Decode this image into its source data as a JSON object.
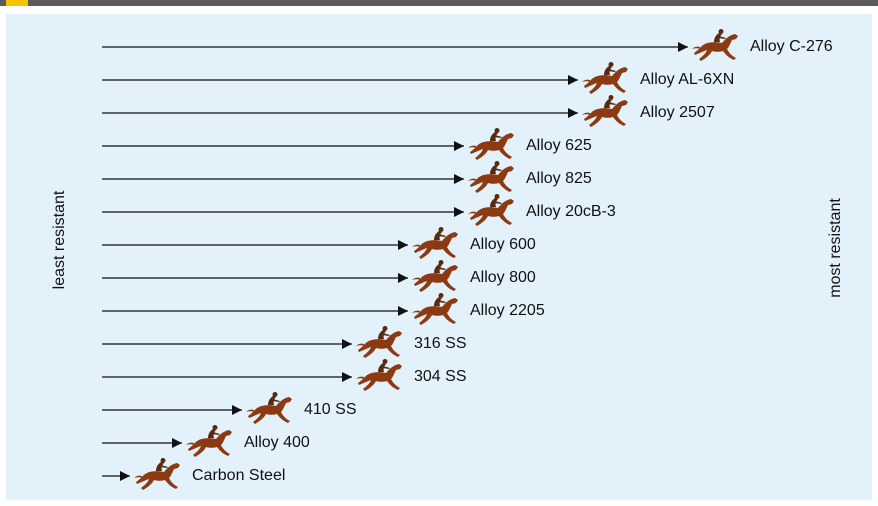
{
  "side_labels": {
    "left": "least resistant",
    "right": "most resistant"
  },
  "items": [
    {
      "label": "Alloy C-276"
    },
    {
      "label": "Alloy AL-6XN"
    },
    {
      "label": "Alloy 2507"
    },
    {
      "label": "Alloy 625"
    },
    {
      "label": "Alloy 825"
    },
    {
      "label": "Alloy 20cB-3"
    },
    {
      "label": "Alloy 600"
    },
    {
      "label": "Alloy 800"
    },
    {
      "label": "Alloy 2205"
    },
    {
      "label": "316 SS"
    },
    {
      "label": "304 SS"
    },
    {
      "label": "410 SS"
    },
    {
      "label": "Alloy 400"
    },
    {
      "label": "Carbon Steel"
    }
  ]
}
